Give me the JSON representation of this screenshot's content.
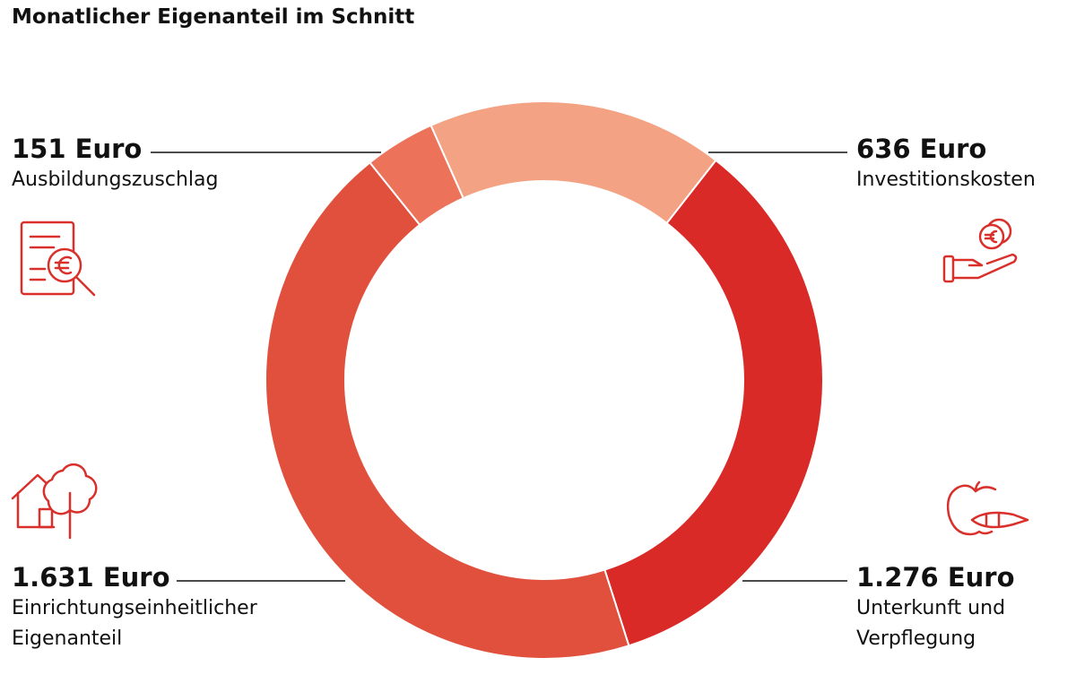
{
  "chart_data": {
    "type": "pie",
    "donut": true,
    "title": "Monatlicher Eigenanteil im Schnitt",
    "categories": [
      "Investitionskosten",
      "Unterkunft und Verpflegung",
      "Einrichtungseinheitlicher Eigenanteil",
      "Ausbildungszuschlag"
    ],
    "values": [
      636,
      1276,
      1631,
      151
    ],
    "value_labels": [
      "636 Euro",
      "1.276 Euro",
      "1.631 Euro",
      "151 Euro"
    ],
    "colors": [
      "#f4a284",
      "#d92a27",
      "#e0503d",
      "#ec7259"
    ]
  }
}
